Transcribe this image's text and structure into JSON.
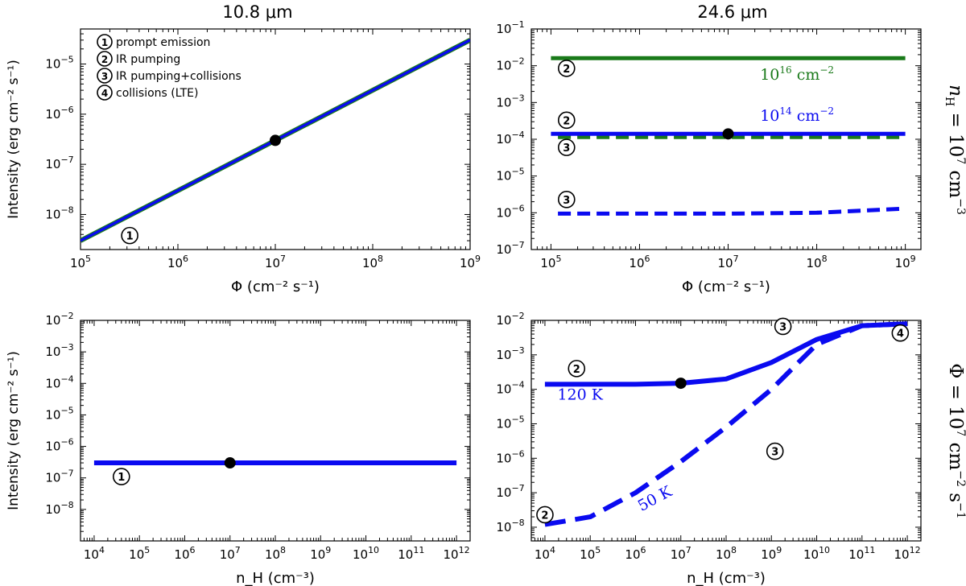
{
  "column_titles": [
    "10.8 μm",
    "24.6 μm"
  ],
  "row_labels": [
    "n_H = 10^7 cm^-3",
    "Φ = 10^7 cm^-2 s^-1"
  ],
  "colors": {
    "blue": "#0a0af0",
    "green": "#1a7a1a",
    "black": "#000000"
  },
  "legend": [
    {
      "num": "1",
      "label": "prompt emission"
    },
    {
      "num": "2",
      "label": "IR pumping"
    },
    {
      "num": "3",
      "label": "IR pumping+collisions"
    },
    {
      "num": "4",
      "label": "collisions (LTE)"
    }
  ],
  "chart_data": [
    {
      "id": "top-left",
      "type": "line",
      "title": "10.8 μm",
      "xlabel": "Φ (cm⁻² s⁻¹)",
      "ylabel": "Intensity (erg cm⁻² s⁻¹)",
      "xscale": "log",
      "yscale": "log",
      "xlim": [
        100000,
        1000000000
      ],
      "ylim": [
        2e-09,
        5e-05
      ],
      "xticks": [
        5,
        6,
        7,
        8,
        9
      ],
      "yticks": [
        -8,
        -7,
        -6,
        -5
      ],
      "series": [
        {
          "name": "10^16 cm^-2",
          "color": "green",
          "style": "solid",
          "x": [
            100000,
            1000000000
          ],
          "y": [
            3e-09,
            3e-05
          ]
        },
        {
          "name": "10^14 cm^-2",
          "color": "blue",
          "style": "solid",
          "x": [
            100000,
            1000000000
          ],
          "y": [
            3e-09,
            3e-05
          ]
        }
      ],
      "points": [
        {
          "x": 10000000,
          "y": 3e-07
        }
      ],
      "markers": [
        {
          "num": "1",
          "x": 320000,
          "y": 3.8e-09
        }
      ]
    },
    {
      "id": "top-right",
      "type": "line",
      "title": "24.6 μm",
      "xlabel": "Φ (cm⁻² s⁻¹)",
      "ylabel": "",
      "xscale": "log",
      "yscale": "log",
      "xlim": [
        60000,
        1500000000
      ],
      "ylim": [
        1e-07,
        0.1
      ],
      "xticks": [
        5,
        6,
        7,
        8,
        9
      ],
      "yticks": [
        -7,
        -6,
        -5,
        -4,
        -3,
        -2,
        -1
      ],
      "series": [
        {
          "name": "10^16 cm^-2 IR pumping",
          "color": "green",
          "style": "solid",
          "x": [
            100000,
            1000000000
          ],
          "y": [
            0.016,
            0.016
          ]
        },
        {
          "name": "10^16 cm^-2 IR pumping+collisions",
          "color": "green",
          "style": "dashed",
          "x": [
            120000,
            1000000000
          ],
          "y": [
            0.000115,
            0.000115
          ]
        },
        {
          "name": "10^14 cm^-2 IR pumping",
          "color": "blue",
          "style": "solid",
          "x": [
            100000,
            1000000000
          ],
          "y": [
            0.00014,
            0.00014
          ]
        },
        {
          "name": "10^14 cm^-2 IR pumping+collisions",
          "color": "blue",
          "style": "dashed",
          "x": [
            120000,
            10000000,
            100000000,
            1000000000
          ],
          "y": [
            9.5e-07,
            9.5e-07,
            1e-06,
            1.3e-06
          ]
        }
      ],
      "points": [
        {
          "x": 10000000,
          "y": 0.00014
        }
      ],
      "markers": [
        {
          "num": "2",
          "x": 150000,
          "y": 0.0085
        },
        {
          "num": "2",
          "x": 150000,
          "y": 0.00033
        },
        {
          "num": "3",
          "x": 150000,
          "y": 6e-05
        },
        {
          "num": "3",
          "x": 150000,
          "y": 2.3e-06
        }
      ],
      "annotations": [
        {
          "label": "10",
          "sup": "16",
          "unit": " cm",
          "usup": "−2",
          "color": "green",
          "x": 60000000,
          "y": 0.0042
        },
        {
          "label": "10",
          "sup": "14",
          "unit": " cm",
          "usup": "−2",
          "color": "blue",
          "x": 60000000,
          "y": 0.00032
        }
      ]
    },
    {
      "id": "bottom-left",
      "type": "line",
      "title": "",
      "xlabel": "n_H (cm⁻³)",
      "ylabel": "Intensity (erg cm⁻² s⁻¹)",
      "xscale": "log",
      "yscale": "log",
      "xlim": [
        5000,
        2000000000000
      ],
      "ylim": [
        1e-09,
        0.01
      ],
      "xticks": [
        4,
        5,
        6,
        7,
        8,
        9,
        10,
        11,
        12
      ],
      "yticks": [
        -8,
        -7,
        -6,
        -5,
        -4,
        -3,
        -2
      ],
      "series": [
        {
          "name": "10.8 μm",
          "color": "blue",
          "style": "solid",
          "x": [
            10000,
            1000000000000
          ],
          "y": [
            3e-07,
            3e-07
          ]
        }
      ],
      "points": [
        {
          "x": 10000000,
          "y": 3e-07
        }
      ],
      "markers": [
        {
          "num": "1",
          "x": 40000,
          "y": 1.1e-07
        }
      ]
    },
    {
      "id": "bottom-right",
      "type": "line",
      "title": "",
      "xlabel": "n_H (cm⁻³)",
      "ylabel": "",
      "xscale": "log",
      "yscale": "log",
      "xlim": [
        5000,
        2000000000000
      ],
      "ylim": [
        4e-09,
        0.01
      ],
      "xticks": [
        4,
        5,
        6,
        7,
        8,
        9,
        10,
        11,
        12
      ],
      "yticks": [
        -8,
        -7,
        -6,
        -5,
        -4,
        -3,
        -2
      ],
      "series": [
        {
          "name": "120 K",
          "color": "blue",
          "style": "solid",
          "x": [
            10000,
            100000,
            1000000,
            10000000,
            100000000,
            1000000000,
            10000000000,
            100000000000,
            1000000000000
          ],
          "y": [
            0.00014,
            0.00014,
            0.00014,
            0.00015,
            0.0002,
            0.0006,
            0.0028,
            0.007,
            0.008
          ]
        },
        {
          "name": "50 K",
          "color": "blue",
          "style": "dashed",
          "x": [
            10000,
            100000,
            1000000,
            10000000,
            100000000,
            1000000000,
            10000000000,
            100000000000,
            1000000000000
          ],
          "y": [
            1.2e-08,
            2e-08,
            1e-07,
            8e-07,
            8e-06,
            0.0001,
            0.002,
            0.007,
            0.008
          ]
        }
      ],
      "points": [
        {
          "x": 10000000,
          "y": 0.00015
        }
      ],
      "markers": [
        {
          "num": "2",
          "x": 50000,
          "y": 0.0004
        },
        {
          "num": "3",
          "x": 1800000000,
          "y": 0.0067
        },
        {
          "num": "4",
          "x": 700000000000,
          "y": 0.0043
        },
        {
          "num": "3",
          "x": 1200000000,
          "y": 1.6e-06
        },
        {
          "num": "2",
          "x": 10000,
          "y": 2.3e-08
        }
      ],
      "annotations": [
        {
          "label": "120 K",
          "color": "blue",
          "x": 60000,
          "y": 5e-05
        },
        {
          "label": "50 K",
          "color": "blue",
          "x": 3000000,
          "y": 5e-08,
          "rotate": -28
        }
      ]
    }
  ]
}
